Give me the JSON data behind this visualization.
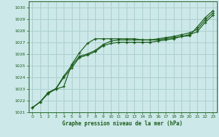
{
  "title": "Graphe pression niveau de la mer (hPa)",
  "background_color": "#cce8e8",
  "grid_color": "#aacece",
  "line_color": "#1a5c1a",
  "xlim": [
    -0.5,
    23.5
  ],
  "ylim": [
    1021,
    1030.5
  ],
  "xtick_labels": [
    "0",
    "1",
    "2",
    "3",
    "4",
    "5",
    "6",
    "7",
    "8",
    "9",
    "10",
    "11",
    "12",
    "13",
    "14",
    "15",
    "16",
    "17",
    "18",
    "19",
    "20",
    "21",
    "22",
    "23"
  ],
  "xticks": [
    0,
    1,
    2,
    3,
    4,
    5,
    6,
    7,
    8,
    9,
    10,
    11,
    12,
    13,
    14,
    15,
    16,
    17,
    18,
    19,
    20,
    21,
    22,
    23
  ],
  "yticks": [
    1021,
    1022,
    1023,
    1024,
    1025,
    1026,
    1027,
    1028,
    1029,
    1030
  ],
  "series1_x": [
    0,
    1,
    2,
    3,
    4,
    5,
    6,
    7,
    8,
    9,
    10,
    11,
    12,
    13,
    14,
    15,
    16,
    17,
    18,
    19,
    20,
    21,
    22,
    23
  ],
  "series1_y": [
    1021.4,
    1021.9,
    1022.7,
    1023.0,
    1023.2,
    1025.1,
    1026.1,
    1026.9,
    1027.3,
    1027.3,
    1027.3,
    1027.3,
    1027.3,
    1027.3,
    1027.2,
    1027.2,
    1027.2,
    1027.3,
    1027.4,
    1027.5,
    1027.55,
    1028.3,
    1029.1,
    1029.7
  ],
  "series2_x": [
    0,
    1,
    2,
    3,
    4,
    5,
    6,
    7,
    8,
    9,
    10,
    11,
    12,
    13,
    14,
    15,
    16,
    17,
    18,
    19,
    20,
    21,
    22,
    23
  ],
  "series2_y": [
    1021.4,
    1021.9,
    1022.65,
    1023.05,
    1024.1,
    1025.0,
    1025.8,
    1026.0,
    1026.3,
    1026.8,
    1027.1,
    1027.2,
    1027.2,
    1027.2,
    1027.2,
    1027.2,
    1027.3,
    1027.4,
    1027.5,
    1027.65,
    1027.8,
    1028.1,
    1028.9,
    1029.5
  ],
  "series3_x": [
    0,
    1,
    2,
    3,
    4,
    5,
    6,
    7,
    8,
    9,
    10,
    11,
    12,
    13,
    14,
    15,
    16,
    17,
    18,
    19,
    20,
    21,
    22,
    23
  ],
  "series3_y": [
    1021.4,
    1021.9,
    1022.6,
    1023.0,
    1024.0,
    1024.8,
    1025.7,
    1025.9,
    1026.2,
    1026.7,
    1026.9,
    1027.0,
    1027.0,
    1027.0,
    1027.0,
    1027.0,
    1027.1,
    1027.2,
    1027.3,
    1027.5,
    1027.65,
    1027.9,
    1028.7,
    1029.3
  ]
}
